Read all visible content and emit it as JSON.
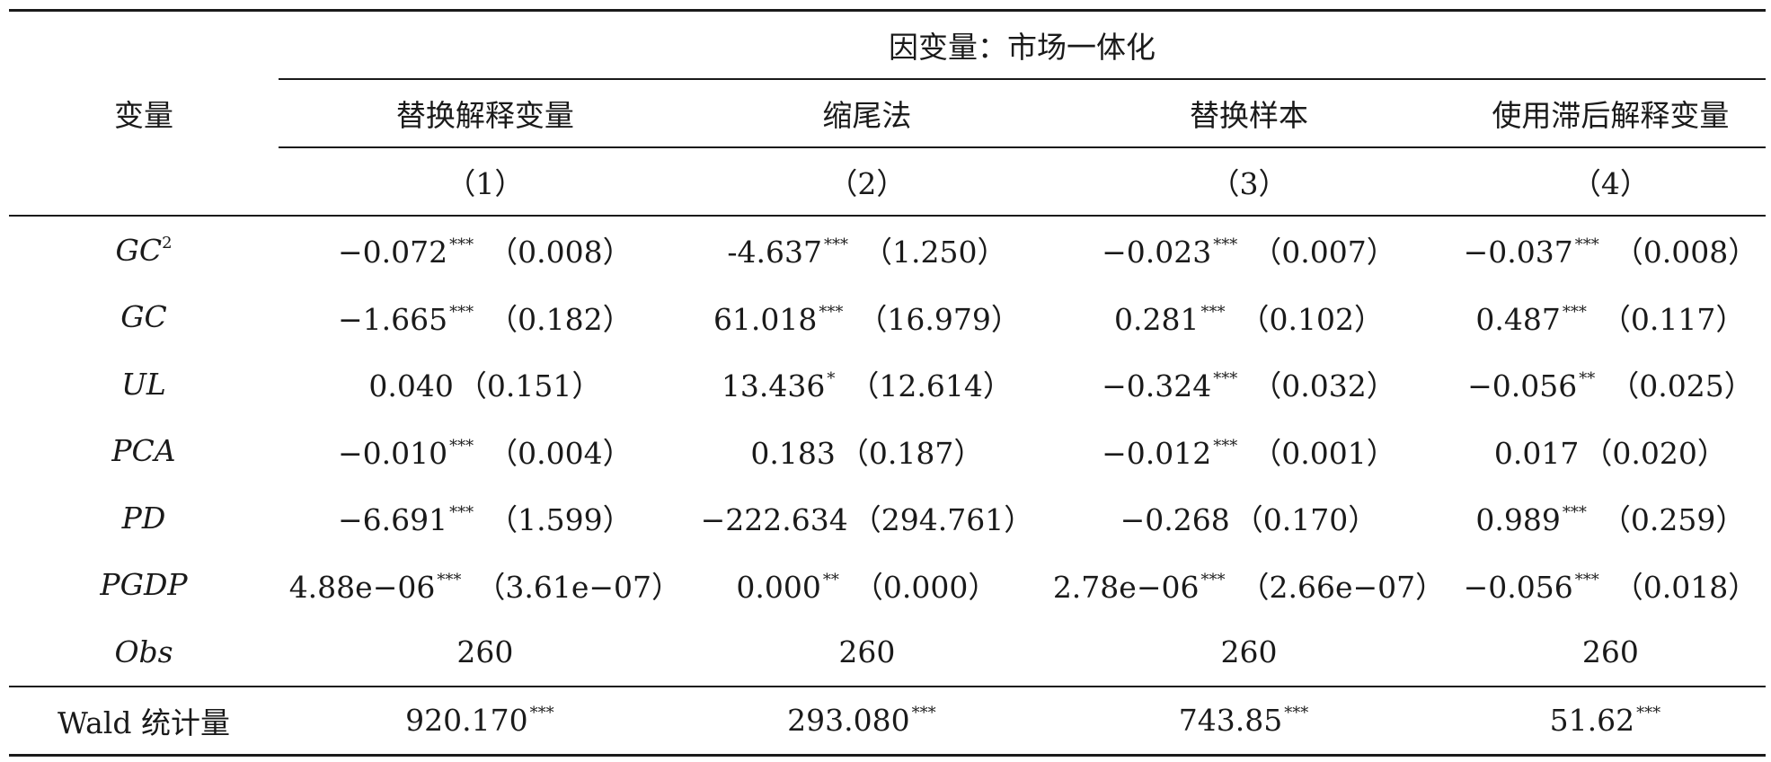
{
  "header": {
    "variable_label": "变量",
    "dependent_label": "因变量：市场一体化",
    "columns": [
      "替换解释变量",
      "缩尾法",
      "替换样本",
      "使用滞后解释变量"
    ],
    "numbers": [
      "（1）",
      "（2）",
      "（3）",
      "（4）"
    ]
  },
  "rows": [
    {
      "name": "GC",
      "name_sup": "2",
      "cells": [
        {
          "coef": "−0.072",
          "stars": "***",
          "se": "（0.008）"
        },
        {
          "coef": "-4.637",
          "stars": "***",
          "se": "（1.250）"
        },
        {
          "coef": "−0.023",
          "stars": "***",
          "se": "（0.007）"
        },
        {
          "coef": "−0.037",
          "stars": "***",
          "se": "（0.008）"
        }
      ]
    },
    {
      "name": "GC",
      "name_sup": "",
      "cells": [
        {
          "coef": "−1.665",
          "stars": "***",
          "se": "（0.182）"
        },
        {
          "coef": "61.018",
          "stars": "***",
          "se": "（16.979）"
        },
        {
          "coef": "0.281",
          "stars": "***",
          "se": "（0.102）"
        },
        {
          "coef": "0.487",
          "stars": "***",
          "se": "（0.117）"
        }
      ]
    },
    {
      "name": "UL",
      "name_sup": "",
      "cells": [
        {
          "coef": "0.040",
          "stars": "",
          "se": "（0.151）"
        },
        {
          "coef": "13.436",
          "stars": "*",
          "se": "（12.614）"
        },
        {
          "coef": "−0.324",
          "stars": "***",
          "se": "（0.032）"
        },
        {
          "coef": "−0.056",
          "stars": "**",
          "se": "（0.025）"
        }
      ]
    },
    {
      "name": "PCA",
      "name_sup": "",
      "cells": [
        {
          "coef": "−0.010",
          "stars": "***",
          "se": "（0.004）"
        },
        {
          "coef": "0.183",
          "stars": "",
          "se": "（0.187）"
        },
        {
          "coef": "−0.012",
          "stars": "***",
          "se": "（0.001）"
        },
        {
          "coef": "0.017",
          "stars": "",
          "se": "（0.020）"
        }
      ]
    },
    {
      "name": "PD",
      "name_sup": "",
      "cells": [
        {
          "coef": "−6.691",
          "stars": "***",
          "se": "（1.599）"
        },
        {
          "coef": "−222.634",
          "stars": "",
          "se": "（294.761）"
        },
        {
          "coef": "−0.268",
          "stars": "",
          "se": "（0.170）"
        },
        {
          "coef": "0.989",
          "stars": "***",
          "se": "（0.259）"
        }
      ]
    },
    {
      "name": "PGDP",
      "name_sup": "",
      "cells": [
        {
          "coef": "4.88e−06",
          "stars": "***",
          "se": "（3.61e−07）"
        },
        {
          "coef": "0.000",
          "stars": "**",
          "se": "（0.000）"
        },
        {
          "coef": "2.78e−06",
          "stars": "***",
          "se": "（2.66e−07）"
        },
        {
          "coef": "−0.056",
          "stars": "***",
          "se": "（0.018）"
        }
      ]
    },
    {
      "name": "Obs",
      "name_sup": "",
      "cells": [
        {
          "coef": "260",
          "stars": "",
          "se": ""
        },
        {
          "coef": "260",
          "stars": "",
          "se": ""
        },
        {
          "coef": "260",
          "stars": "",
          "se": ""
        },
        {
          "coef": "260",
          "stars": "",
          "se": ""
        }
      ]
    }
  ],
  "wald": {
    "label": "Wald 统计量",
    "cells": [
      {
        "coef": "920.170",
        "stars": "***"
      },
      {
        "coef": "293.080",
        "stars": "***"
      },
      {
        "coef": "743.85",
        "stars": "***"
      },
      {
        "coef": "51.62",
        "stars": "***"
      }
    ]
  }
}
